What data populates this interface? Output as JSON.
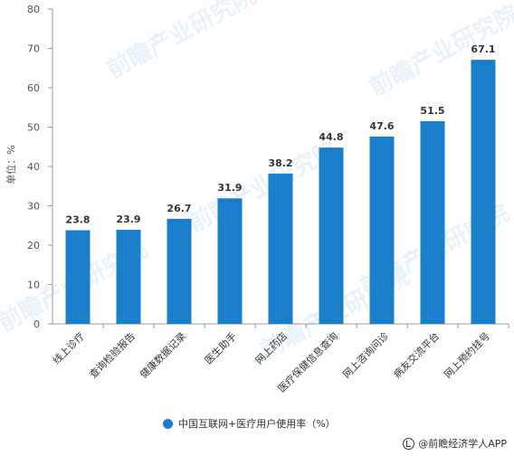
{
  "chart_data": {
    "type": "bar",
    "categories": [
      "线上诊疗",
      "查询检验报告",
      "健康数据记录",
      "医生助手",
      "网上药店",
      "医疗保健信息查询",
      "网上咨询问诊",
      "病友交流平台",
      "网上预约挂号"
    ],
    "series": [
      {
        "name": "中国互联网+医疗用户使用率（%）",
        "values": [
          23.8,
          23.9,
          26.7,
          31.9,
          38.2,
          44.8,
          47.6,
          51.5,
          67.1
        ]
      }
    ],
    "ylabel": "单位：%",
    "ylim": [
      0,
      80
    ],
    "yticks": [
      0,
      10,
      20,
      30,
      40,
      50,
      60,
      70,
      80
    ],
    "grid": false,
    "legend_position": "bottom",
    "colors": {
      "bar": "#1a7fcb"
    }
  },
  "watermark": "前瞻产业研究院",
  "credit": "@前瞻经济学人APP"
}
